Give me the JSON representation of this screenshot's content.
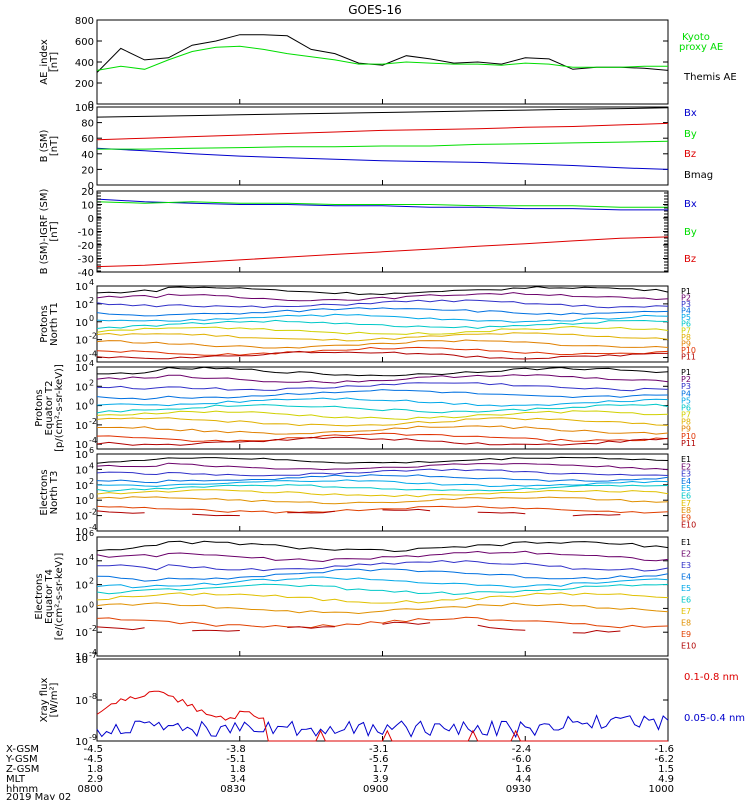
{
  "title": "GOES-16",
  "colors": {
    "black": "#000000",
    "green": "#00dd00",
    "blue": "#0000cc",
    "red": "#dd0000",
    "P": [
      "#000000",
      "#6a006a",
      "#3030c8",
      "#0070e0",
      "#00a8e8",
      "#00c8c8",
      "#d0d000",
      "#e0b000",
      "#e08000",
      "#e03000",
      "#b00000"
    ],
    "E": [
      "#000000",
      "#6a006a",
      "#3030c8",
      "#0070e0",
      "#00a8e8",
      "#00c8c8",
      "#e0c000",
      "#e09000",
      "#e04000",
      "#b00000"
    ]
  },
  "chart_data": [
    {
      "type": "line",
      "ylabel": "AE_index\n[nT]",
      "ylim": [
        0,
        800
      ],
      "yticks": [
        "800",
        "600",
        "400",
        "200",
        "0"
      ],
      "ytick_values": [
        800,
        600,
        400,
        200,
        0
      ],
      "x": [
        0,
        5,
        10,
        15,
        20,
        25,
        30,
        35,
        40,
        45,
        50,
        55,
        60,
        65,
        70,
        75,
        80,
        85,
        90,
        95,
        100,
        105,
        110,
        115,
        120
      ],
      "series": [
        {
          "name": "Themis AE",
          "color": "black",
          "values": [
            300,
            530,
            420,
            440,
            560,
            600,
            660,
            660,
            650,
            520,
            480,
            390,
            370,
            460,
            430,
            390,
            400,
            380,
            440,
            430,
            330,
            350,
            350,
            340,
            320
          ]
        },
        {
          "name": "Kyoto proxy AE",
          "color": "green",
          "values": [
            320,
            360,
            330,
            420,
            500,
            540,
            550,
            520,
            480,
            450,
            420,
            380,
            380,
            400,
            390,
            380,
            380,
            370,
            390,
            380,
            350,
            350,
            350,
            360,
            360
          ]
        }
      ],
      "legend": [
        "Kyoto\nproxy AE",
        "Themis AE"
      ]
    },
    {
      "type": "line",
      "ylabel": "B (SM)\n[nT]",
      "ylim": [
        0,
        100
      ],
      "yticks": [
        "100",
        "80",
        "60",
        "40",
        "20",
        "0"
      ],
      "ytick_values": [
        100,
        80,
        60,
        40,
        20,
        0
      ],
      "x": [
        0,
        10,
        20,
        30,
        40,
        50,
        60,
        70,
        80,
        90,
        100,
        110,
        120
      ],
      "series": [
        {
          "name": "Bx",
          "color": "blue",
          "values": [
            47,
            44,
            40,
            37,
            35,
            33,
            31,
            30,
            29,
            27,
            25,
            22,
            20
          ]
        },
        {
          "name": "By",
          "color": "green",
          "values": [
            46,
            46,
            47,
            48,
            49,
            49,
            50,
            50,
            52,
            53,
            54,
            55,
            56
          ]
        },
        {
          "name": "Bz",
          "color": "red",
          "values": [
            58,
            60,
            62,
            64,
            66,
            68,
            70,
            71,
            72,
            74,
            75,
            77,
            79
          ]
        },
        {
          "name": "Bmag",
          "color": "black",
          "values": [
            87,
            88,
            89,
            90,
            91,
            92,
            93,
            94,
            95,
            96,
            97,
            98,
            99
          ]
        }
      ]
    },
    {
      "type": "line",
      "ylabel": "B (SM)-IGRF (SM)\n[nT]",
      "ylim": [
        -40,
        20
      ],
      "yticks": [
        "20",
        "10",
        "0",
        "-10",
        "-20",
        "-30",
        "-40"
      ],
      "ytick_values": [
        20,
        10,
        0,
        -10,
        -20,
        -30,
        -40
      ],
      "x": [
        0,
        10,
        20,
        30,
        40,
        50,
        60,
        70,
        80,
        90,
        100,
        110,
        120
      ],
      "series": [
        {
          "name": "Bx",
          "color": "blue",
          "values": [
            14,
            12,
            11,
            10,
            10,
            9,
            9,
            8,
            8,
            7,
            7,
            6,
            6
          ]
        },
        {
          "name": "By",
          "color": "green",
          "values": [
            12,
            11,
            12,
            11,
            11,
            10,
            10,
            10,
            9,
            9,
            9,
            8,
            8
          ]
        },
        {
          "name": "Bz",
          "color": "red",
          "values": [
            -36,
            -35,
            -33,
            -31,
            -29,
            -27,
            -25,
            -23,
            -21,
            -19,
            -17,
            -15,
            -14
          ]
        }
      ]
    },
    {
      "type": "line",
      "yscale": "log",
      "ylabel": "Protons\nNorth T1",
      "ylim": [
        -4.5,
        4
      ],
      "yticks": [
        "10^4",
        "10^2",
        "10^0",
        "10^-2",
        "10^-4"
      ],
      "ytick_values": [
        4,
        2,
        0,
        -2,
        -4
      ],
      "legend": [
        "P1",
        "P2",
        "P3",
        "P4",
        "P5",
        "P6",
        "P7",
        "P8",
        "P9",
        "P10",
        "P11"
      ]
    },
    {
      "type": "line",
      "yscale": "log",
      "ylabel": "Protons\nEquator T2\n[p/(cm²-s-sr-keV)]",
      "ylim": [
        -4.5,
        4
      ],
      "yticks": [
        "10^4",
        "10^2",
        "10^0",
        "10^-2",
        "10^-4"
      ],
      "ytick_values": [
        4,
        2,
        0,
        -2,
        -4
      ],
      "legend": [
        "P1",
        "P2",
        "P3",
        "P4",
        "P5",
        "P6",
        "P7",
        "P8",
        "P9",
        "P10",
        "P11"
      ]
    },
    {
      "type": "line",
      "yscale": "log",
      "ylabel": "Electrons\nNorth T3",
      "ylim": [
        -4,
        6
      ],
      "yticks": [
        "10^6",
        "10^4",
        "10^2",
        "10^0",
        "10^-2",
        "10^-4"
      ],
      "ytick_values": [
        6,
        4,
        2,
        0,
        -2,
        -4
      ],
      "legend": [
        "E1",
        "E2",
        "E3",
        "E4",
        "E5",
        "E6",
        "E7",
        "E8",
        "E9",
        "E10"
      ]
    },
    {
      "type": "line",
      "yscale": "log",
      "ylabel": "Electrons\nEquator T4\n[e/(cm²-s-sr-keV)]",
      "ylim": [
        -4,
        6
      ],
      "yticks": [
        "10^6",
        "10^4",
        "10^2",
        "10^0",
        "10^-2",
        "10^-4"
      ],
      "ytick_values": [
        6,
        4,
        2,
        0,
        -2,
        -4
      ],
      "legend": [
        "E1",
        "E2",
        "E3",
        "E4",
        "E5",
        "E6",
        "E7",
        "E8",
        "E9",
        "E10"
      ]
    },
    {
      "type": "line",
      "yscale": "log",
      "ylabel": "Xray flux\n[W/m²]",
      "ylim": [
        -9,
        -7
      ],
      "yticks": [
        "10^-7",
        "10^-8",
        "10^-9"
      ],
      "ytick_values": [
        -7,
        -8,
        -9
      ],
      "series": [
        {
          "name": "0.1-0.8 nm",
          "color": "red"
        },
        {
          "name": "0.05-0.4 nm",
          "color": "blue"
        }
      ],
      "legend": [
        "0.1-0.8 nm",
        "0.05-0.4 nm"
      ]
    }
  ],
  "x_axis": {
    "labels": [
      "X-GSM",
      "Y-GSM",
      "Z-GSM",
      "MLT",
      "hhmm",
      "2019 May 02"
    ],
    "columns": [
      [
        "-4.5",
        "-4.5",
        "1.8",
        "2.9",
        "0800"
      ],
      [
        "-3.8",
        "-5.1",
        "1.8",
        "3.4",
        "0830"
      ],
      [
        "-3.1",
        "-5.6",
        "1.7",
        "3.9",
        "0900"
      ],
      [
        "-2.4",
        "-6.0",
        "1.6",
        "4.4",
        "0930"
      ],
      [
        "-1.6",
        "-6.2",
        "1.5",
        "4.9",
        "1000"
      ]
    ]
  }
}
